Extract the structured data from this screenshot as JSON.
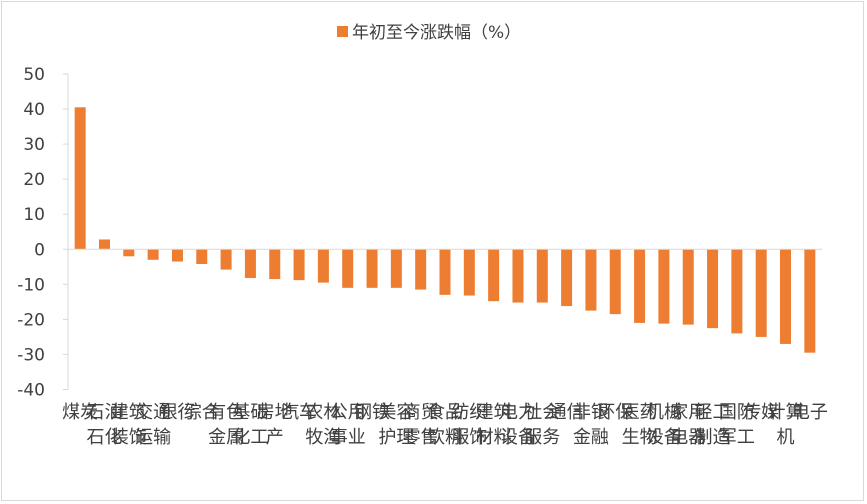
{
  "chart_data": {
    "type": "bar",
    "categories": [
      "煤炭",
      "石油石化",
      "建筑装饰",
      "交通运输",
      "银行",
      "综合",
      "有色金属",
      "基础化工",
      "房地产",
      "汽车",
      "农林牧渔",
      "公用事业",
      "钢铁",
      "美容护理",
      "商贸零售",
      "食品饮料",
      "纺织服饰",
      "建筑材料",
      "电力设备",
      "社会服务",
      "通信",
      "非银金融",
      "环保",
      "医药生物",
      "机械设备",
      "家用电器",
      "轻工制造",
      "国防军工",
      "传媒",
      "计算机",
      "电子"
    ],
    "series": [
      {
        "name": "年初至今涨跌幅（%）",
        "values": [
          40.5,
          2.8,
          -2.0,
          -3.0,
          -3.5,
          -4.2,
          -5.8,
          -8.2,
          -8.5,
          -8.8,
          -9.5,
          -11.0,
          -11.0,
          -11.0,
          -11.5,
          -13.0,
          -13.2,
          -14.8,
          -15.2,
          -15.2,
          -16.2,
          -17.5,
          -18.5,
          -21.0,
          -21.2,
          -21.5,
          -22.5,
          -24.0,
          -25.0,
          -27.0,
          -29.5
        ]
      }
    ],
    "ylim": [
      -40,
      50
    ],
    "yticks": [
      "50",
      "40",
      "30",
      "20",
      "10",
      "0",
      "-10",
      "-20",
      "-30",
      "-40"
    ],
    "legend_position": "top-center",
    "grid": false,
    "colors": {
      "bar": "#ED7D31",
      "axis": "#d9d9d9",
      "text": "#404040"
    }
  }
}
